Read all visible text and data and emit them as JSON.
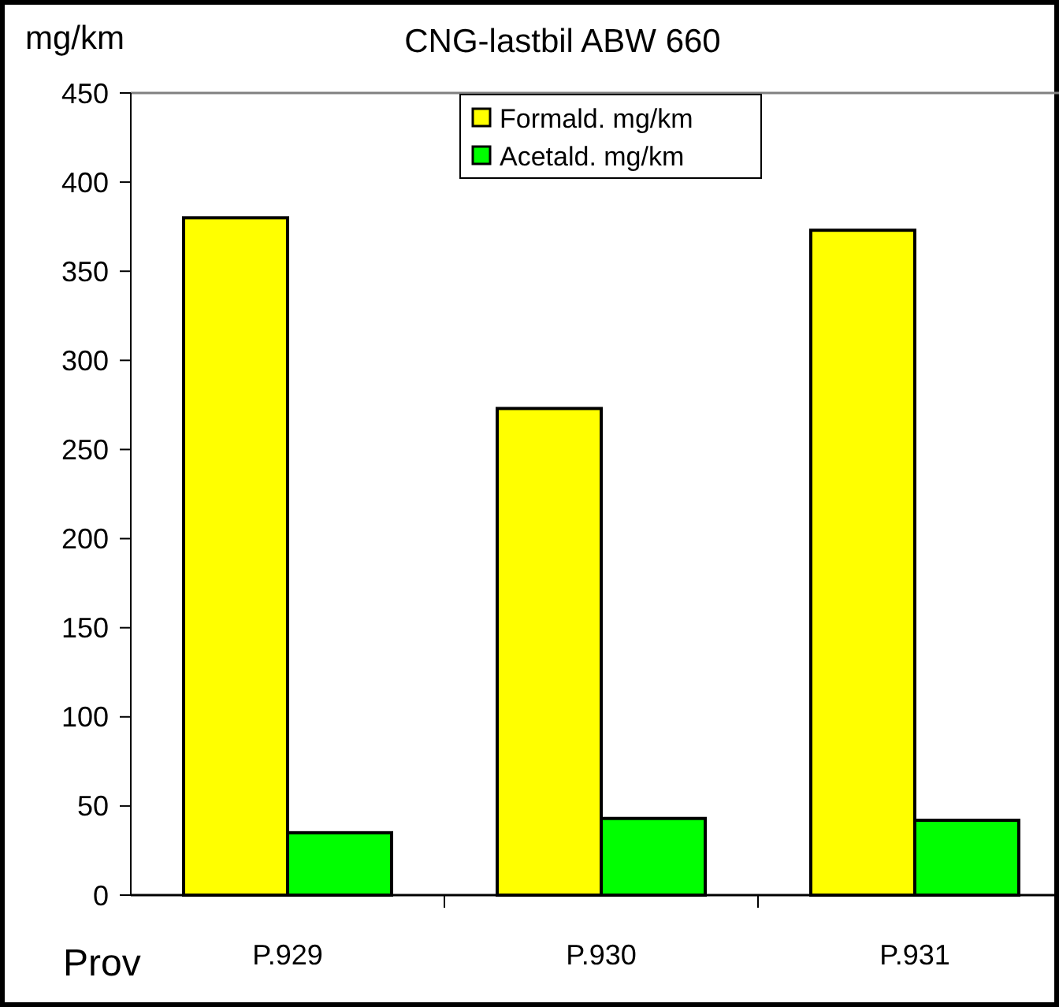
{
  "chart_data": {
    "type": "bar",
    "title": "CNG-lastbil ABW 660",
    "xlabel": "Prov",
    "ylabel": "mg/km",
    "categories": [
      "P.929",
      "P.930",
      "P.931"
    ],
    "series": [
      {
        "name": "Formald. mg/km",
        "color": "#ffff00",
        "values": [
          380,
          273,
          373
        ]
      },
      {
        "name": "Acetald. mg/km",
        "color": "#00ff00",
        "values": [
          35,
          43,
          42
        ]
      }
    ],
    "ylim": [
      0,
      450
    ],
    "yticks": [
      0,
      50,
      100,
      150,
      200,
      250,
      300,
      350,
      400,
      450
    ],
    "grid": false,
    "legend": "top"
  }
}
